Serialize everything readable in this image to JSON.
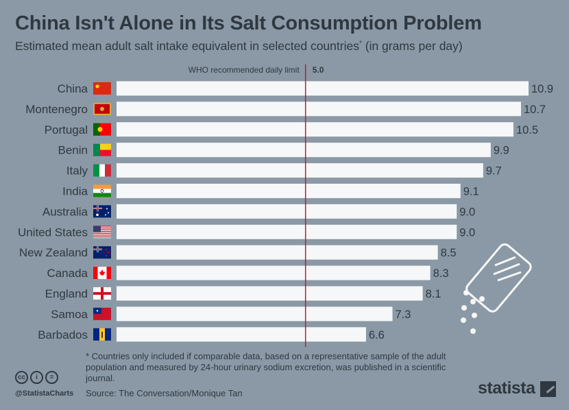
{
  "title": "China Isn't Alone in Its Salt Consumption Problem",
  "subtitle": "Estimated mean adult salt intake equivalent in selected countries",
  "subtitle_marker": "*",
  "subtitle_suffix": "(in grams per day)",
  "footnote": "* Countries only included if comparable data, based on a representative sample of the adult population and measured by 24-hour urinary sodium excretion, was published in a scientific journal.",
  "source": "Source: The Conversation/Monique Tan",
  "social_handle": "@StatistaCharts",
  "brand": "statista",
  "license_icons": [
    "cc",
    "i",
    "="
  ],
  "colors": {
    "background": "#8b99a6",
    "bar": "#f6f7f8",
    "text": "#2f3840",
    "reference_line": "#b01e2f"
  },
  "chart_data": {
    "type": "bar",
    "orientation": "horizontal",
    "categories": [
      "China",
      "Montenegro",
      "Portugal",
      "Benin",
      "Italy",
      "India",
      "Australia",
      "United States",
      "New Zealand",
      "Canada",
      "England",
      "Samoa",
      "Barbados"
    ],
    "values": [
      10.9,
      10.7,
      10.5,
      9.9,
      9.7,
      9.1,
      9.0,
      9.0,
      8.5,
      8.3,
      8.1,
      7.3,
      6.6
    ],
    "value_labels": [
      "10.9",
      "10.7",
      "10.5",
      "9.9",
      "9.7",
      "9.1",
      "9.0",
      "9.0",
      "8.5",
      "8.3",
      "8.1",
      "7.3",
      "6.6"
    ],
    "flags": [
      "china-flag-icon",
      "montenegro-flag-icon",
      "portugal-flag-icon",
      "benin-flag-icon",
      "italy-flag-icon",
      "india-flag-icon",
      "australia-flag-icon",
      "united-states-flag-icon",
      "new-zealand-flag-icon",
      "canada-flag-icon",
      "england-flag-icon",
      "samoa-flag-icon",
      "barbados-flag-icon"
    ],
    "xlim": [
      0,
      10.9
    ],
    "reference_line": {
      "value": 5.0,
      "label": "WHO recommended daily limit",
      "value_label": "5.0"
    },
    "grid": false,
    "legend": "none"
  }
}
